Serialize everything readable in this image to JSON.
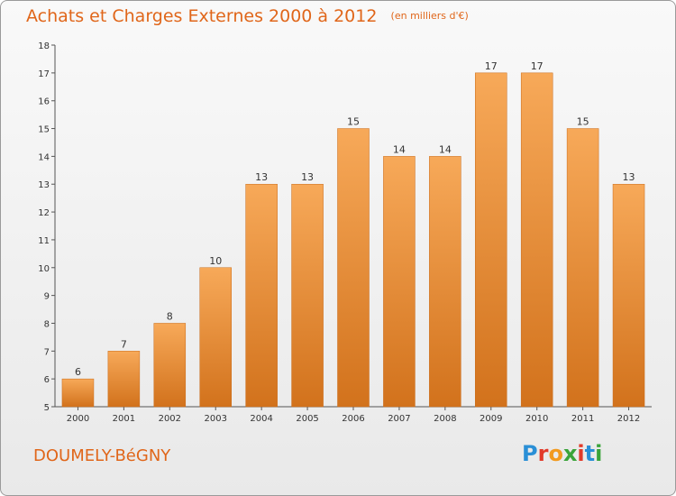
{
  "header": {
    "title": "Achats et Charges Externes 2000 à 2012",
    "unit": "(en milliers d'€)"
  },
  "footer": {
    "commune": "DOUMELY-BéGNY",
    "logo": {
      "text": "Proxiti",
      "letters": [
        "P",
        "r",
        "o",
        "x",
        "i",
        "t",
        "i"
      ],
      "colors": [
        "#2a8fd6",
        "#e23a2a",
        "#f29a1f",
        "#3aa43a",
        "#e23a2a",
        "#2a8fd6",
        "#3aa43a"
      ]
    }
  },
  "colors": {
    "bar_top": "#f7a959",
    "bar_bottom": "#d2721c",
    "title": "#e0661a"
  },
  "chart_data": {
    "type": "bar",
    "title": "Achats et Charges Externes 2000 à 2012",
    "ylabel": "",
    "xlabel": "",
    "categories": [
      "2000",
      "2001",
      "2002",
      "2003",
      "2004",
      "2005",
      "2006",
      "2007",
      "2008",
      "2009",
      "2010",
      "2011",
      "2012"
    ],
    "values": [
      6,
      7,
      8,
      10,
      13,
      13,
      15,
      14,
      14,
      17,
      17,
      15,
      13
    ],
    "ylim": [
      5,
      18
    ],
    "yticks": [
      5,
      6,
      7,
      8,
      9,
      10,
      11,
      12,
      13,
      14,
      15,
      16,
      17,
      18
    ],
    "grid": false,
    "legend": "none"
  }
}
